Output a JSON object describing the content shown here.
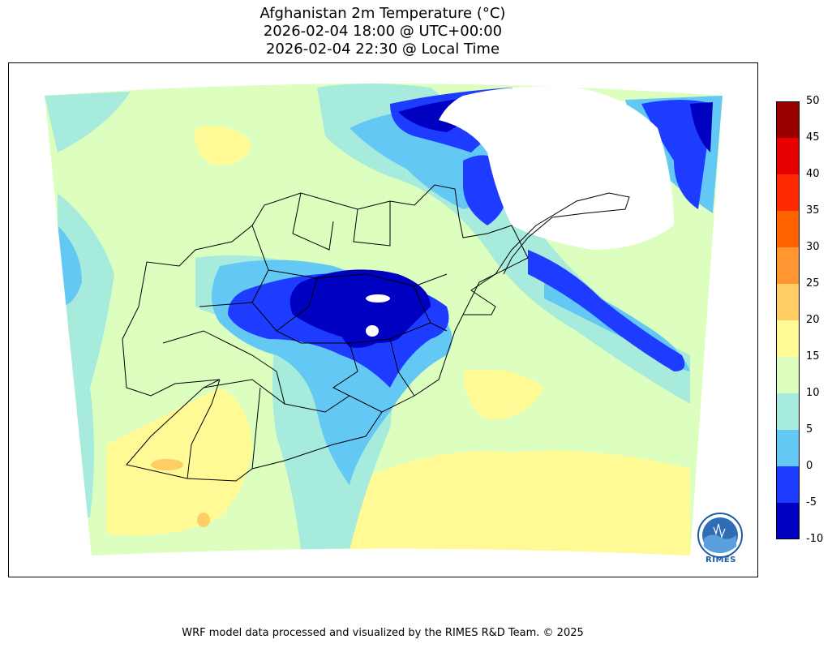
{
  "title": {
    "line1": "Afghanistan 2m Temperature (°C)",
    "line2": "2026-02-04 18:00 @ UTC+00:00",
    "line3": "2026-02-04 22:30 @ Local Time"
  },
  "colorbar": {
    "ticks": [
      "50",
      "45",
      "40",
      "35",
      "30",
      "25",
      "20",
      "15",
      "10",
      "5",
      "0",
      "-5",
      "-10"
    ],
    "colors": [
      "#9b0000",
      "#e60000",
      "#ff2a00",
      "#ff6400",
      "#ff9632",
      "#ffcd64",
      "#fffa96",
      "#dcffc0",
      "#a6ebdc",
      "#64c8f5",
      "#1e3cff",
      "#0000c0"
    ]
  },
  "legend": {
    "logo_text": "RIMES",
    "logo_icon": "rimes-globe-logo-icon"
  },
  "footer": "WRF model data processed and visualized by the RIMES R&D Team. © 2025"
}
